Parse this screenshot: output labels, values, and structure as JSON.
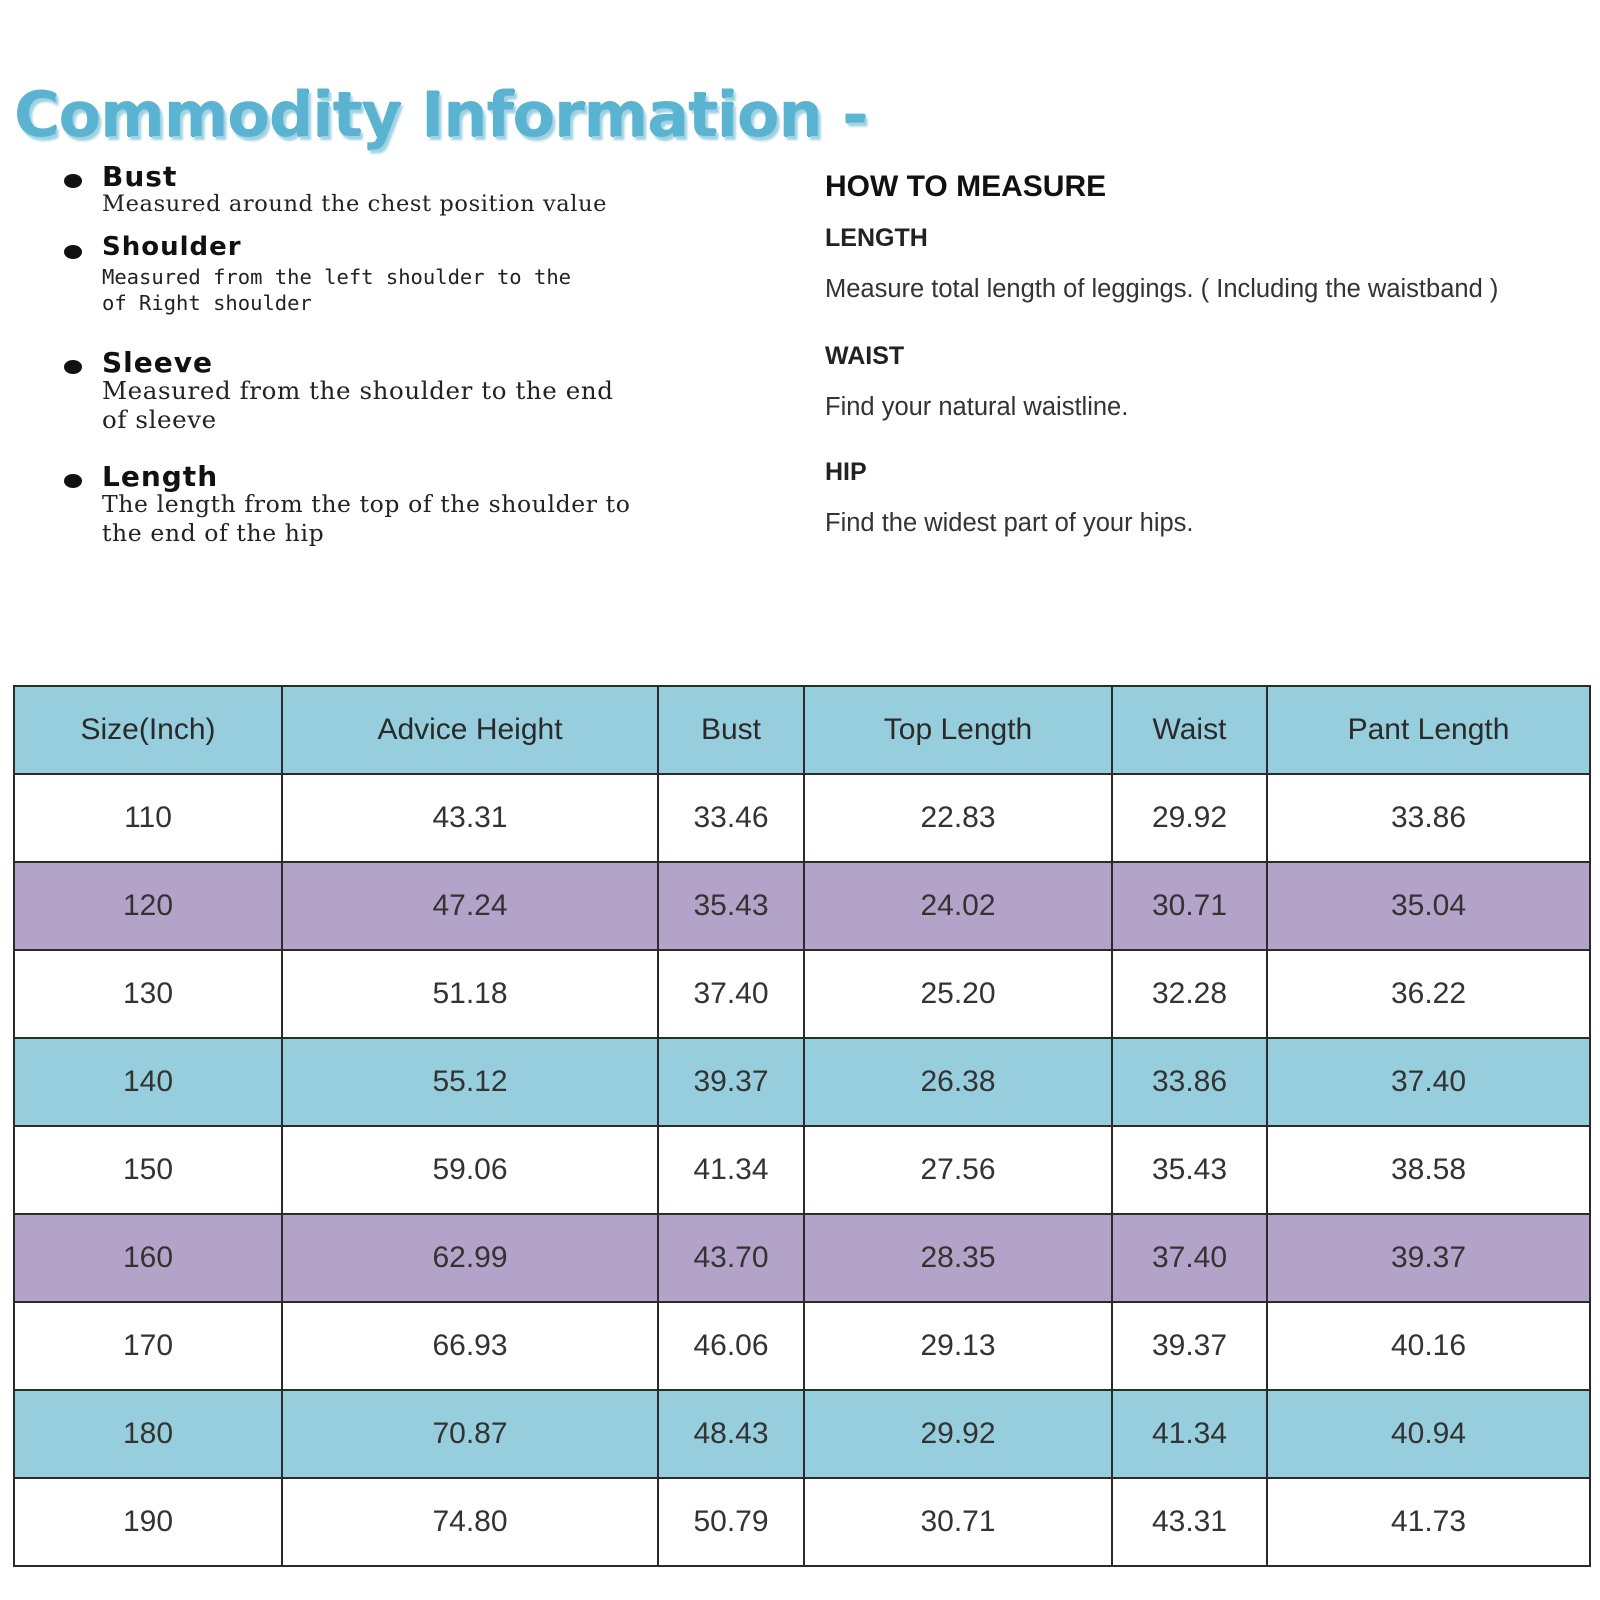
{
  "title": "Commodity Information -",
  "definitions": [
    {
      "term": "Bust",
      "desc": "Measured around the chest position value"
    },
    {
      "term": "Shoulder",
      "desc_lines": [
        "Measured from the left shoulder to the",
        "of Right shoulder"
      ]
    },
    {
      "term": "Sleeve",
      "desc_lines": [
        "Measured from the shoulder to the end",
        "of sleeve"
      ]
    },
    {
      "term": "Length",
      "desc_lines": [
        "The length from the top of the shoulder to",
        "the end of the hip"
      ]
    }
  ],
  "how_to_measure": {
    "heading": "HOW TO MEASURE",
    "sections": [
      {
        "label": "LENGTH",
        "text": "Measure total length of leggings. ( Including the waistband )"
      },
      {
        "label": "WAIST",
        "text": "Find your natural waistline."
      },
      {
        "label": "HIP",
        "text": "Find the widest part of your hips."
      }
    ]
  },
  "table": {
    "headers": [
      "Size(Inch)",
      "Advice Height",
      "Bust",
      "Top Length",
      "Waist",
      "Pant Length"
    ],
    "rows": [
      [
        "110",
        "43.31",
        "33.46",
        "22.83",
        "29.92",
        "33.86"
      ],
      [
        "120",
        "47.24",
        "35.43",
        "24.02",
        "30.71",
        "35.04"
      ],
      [
        "130",
        "51.18",
        "37.40",
        "25.20",
        "32.28",
        "36.22"
      ],
      [
        "140",
        "55.12",
        "39.37",
        "26.38",
        "33.86",
        "37.40"
      ],
      [
        "150",
        "59.06",
        "41.34",
        "27.56",
        "35.43",
        "38.58"
      ],
      [
        "160",
        "62.99",
        "43.70",
        "28.35",
        "37.40",
        "39.37"
      ],
      [
        "170",
        "66.93",
        "46.06",
        "29.13",
        "39.37",
        "40.16"
      ],
      [
        "180",
        "70.87",
        "48.43",
        "29.92",
        "41.34",
        "40.94"
      ],
      [
        "190",
        "74.80",
        "50.79",
        "30.71",
        "43.31",
        "41.73"
      ]
    ]
  }
}
